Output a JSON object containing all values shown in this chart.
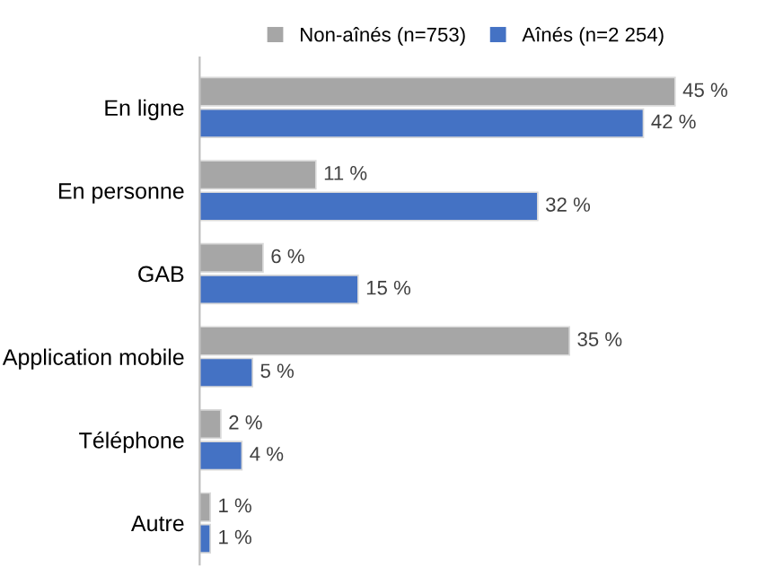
{
  "chart_data": {
    "type": "bar",
    "orientation": "horizontal",
    "legend": "top",
    "grid": false,
    "categories": [
      "En ligne",
      "En personne",
      "GAB",
      "Application mobile",
      "Téléphone",
      "Autre"
    ],
    "series": [
      {
        "name": "Non-aînés (n=753)",
        "color": "#a6a6a6",
        "values": [
          45,
          11,
          6,
          35,
          2,
          1
        ],
        "value_labels": [
          "45 %",
          "11 %",
          "6 %",
          "35 %",
          "2 %",
          "1 %"
        ]
      },
      {
        "name": "Aînés (n=2 254)",
        "color": "#4472c4",
        "values": [
          42,
          32,
          15,
          5,
          4,
          1
        ],
        "value_labels": [
          "42 %",
          "32 %",
          "15 %",
          "5 %",
          "4 %",
          "1 %"
        ]
      }
    ]
  }
}
